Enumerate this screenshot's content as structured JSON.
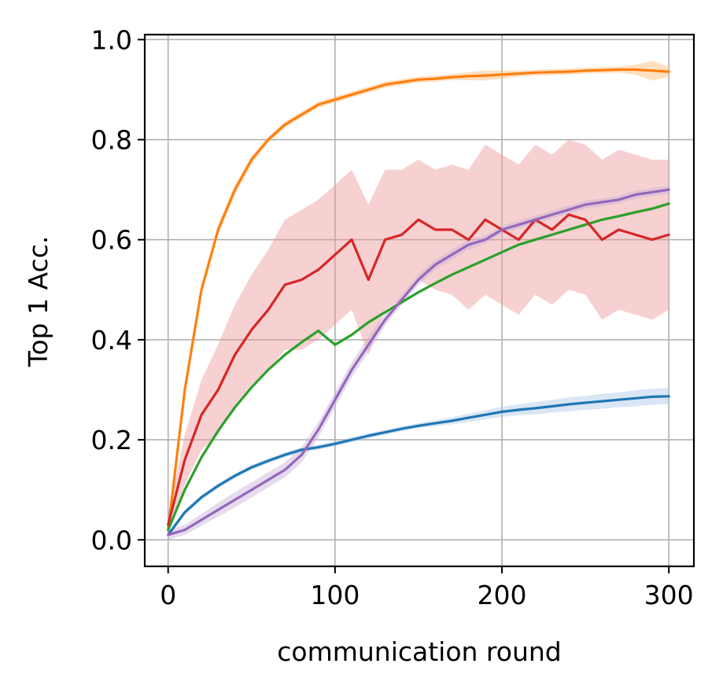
{
  "chart_data": {
    "type": "line",
    "title": "",
    "xlabel": "communication round",
    "ylabel": "Top 1 Acc.",
    "xlim": [
      -14,
      315
    ],
    "ylim": [
      -0.053,
      1.01
    ],
    "xticks": [
      0,
      100,
      200,
      300
    ],
    "yticks": [
      0.0,
      0.2,
      0.4,
      0.6,
      0.8,
      1.0
    ],
    "xtick_labels": [
      "0",
      "100",
      "200",
      "300"
    ],
    "ytick_labels": [
      "0.0",
      "0.2",
      "0.4",
      "0.6",
      "0.8",
      "1.0"
    ],
    "grid": true,
    "legend": "none",
    "x": [
      0,
      10,
      20,
      30,
      40,
      50,
      60,
      70,
      80,
      90,
      100,
      110,
      120,
      130,
      140,
      150,
      160,
      170,
      180,
      190,
      200,
      210,
      220,
      230,
      240,
      250,
      260,
      270,
      280,
      290,
      300
    ],
    "series": [
      {
        "color": "#1f77b4",
        "band_color": "#aec7e8",
        "values": [
          0.01,
          0.055,
          0.085,
          0.108,
          0.128,
          0.145,
          0.158,
          0.17,
          0.18,
          0.185,
          0.192,
          0.2,
          0.208,
          0.215,
          0.222,
          0.228,
          0.233,
          0.238,
          0.244,
          0.25,
          0.256,
          0.26,
          0.263,
          0.267,
          0.271,
          0.274,
          0.277,
          0.28,
          0.283,
          0.286,
          0.287
        ],
        "band": [
          0.005,
          0.005,
          0.005,
          0.005,
          0.005,
          0.005,
          0.005,
          0.005,
          0.005,
          0.005,
          0.005,
          0.005,
          0.005,
          0.005,
          0.005,
          0.005,
          0.006,
          0.007,
          0.008,
          0.009,
          0.01,
          0.011,
          0.012,
          0.013,
          0.014,
          0.014,
          0.015,
          0.015,
          0.016,
          0.016,
          0.016
        ]
      },
      {
        "color": "#ff7f0e",
        "band_color": "#ffbb78",
        "values": [
          0.02,
          0.3,
          0.5,
          0.62,
          0.7,
          0.76,
          0.8,
          0.83,
          0.85,
          0.87,
          0.88,
          0.89,
          0.9,
          0.91,
          0.915,
          0.92,
          0.922,
          0.925,
          0.927,
          0.928,
          0.93,
          0.932,
          0.934,
          0.935,
          0.936,
          0.938,
          0.939,
          0.94,
          0.94,
          0.938,
          0.936
        ],
        "band": [
          0.01,
          0.01,
          0.01,
          0.01,
          0.01,
          0.008,
          0.006,
          0.006,
          0.006,
          0.006,
          0.006,
          0.006,
          0.006,
          0.006,
          0.006,
          0.006,
          0.006,
          0.006,
          0.008,
          0.01,
          0.008,
          0.006,
          0.006,
          0.006,
          0.006,
          0.006,
          0.006,
          0.006,
          0.01,
          0.02,
          0.01
        ]
      },
      {
        "color": "#2ca02c",
        "band_color": "#98df8a",
        "values": [
          0.02,
          0.1,
          0.165,
          0.218,
          0.265,
          0.305,
          0.34,
          0.37,
          0.395,
          0.418,
          0.39,
          0.41,
          0.435,
          0.455,
          0.475,
          0.495,
          0.513,
          0.53,
          0.545,
          0.56,
          0.575,
          0.59,
          0.6,
          0.61,
          0.62,
          0.63,
          0.64,
          0.647,
          0.655,
          0.662,
          0.672
        ],
        "band": [
          0.003,
          0.003,
          0.003,
          0.003,
          0.003,
          0.003,
          0.003,
          0.003,
          0.003,
          0.003,
          0.003,
          0.003,
          0.003,
          0.003,
          0.003,
          0.003,
          0.003,
          0.003,
          0.003,
          0.003,
          0.003,
          0.003,
          0.003,
          0.003,
          0.003,
          0.003,
          0.003,
          0.003,
          0.003,
          0.003,
          0.003
        ]
      },
      {
        "color": "#d62728",
        "band_color": "#ee9a9a",
        "values": [
          0.03,
          0.16,
          0.25,
          0.3,
          0.37,
          0.42,
          0.46,
          0.51,
          0.52,
          0.54,
          0.57,
          0.6,
          0.52,
          0.6,
          0.61,
          0.64,
          0.62,
          0.62,
          0.6,
          0.64,
          0.62,
          0.6,
          0.64,
          0.62,
          0.65,
          0.64,
          0.6,
          0.62,
          0.61,
          0.6,
          0.61
        ],
        "band": [
          0.02,
          0.05,
          0.07,
          0.09,
          0.1,
          0.11,
          0.12,
          0.13,
          0.14,
          0.14,
          0.14,
          0.14,
          0.15,
          0.14,
          0.13,
          0.12,
          0.12,
          0.13,
          0.14,
          0.15,
          0.15,
          0.15,
          0.15,
          0.15,
          0.15,
          0.15,
          0.16,
          0.16,
          0.16,
          0.16,
          0.15
        ]
      },
      {
        "color": "#9467bd",
        "band_color": "#c5b0d5",
        "values": [
          0.01,
          0.02,
          0.04,
          0.06,
          0.08,
          0.1,
          0.12,
          0.14,
          0.17,
          0.22,
          0.28,
          0.34,
          0.39,
          0.44,
          0.48,
          0.52,
          0.55,
          0.57,
          0.59,
          0.6,
          0.62,
          0.63,
          0.64,
          0.65,
          0.66,
          0.67,
          0.675,
          0.68,
          0.69,
          0.695,
          0.7
        ],
        "band": [
          0.01,
          0.01,
          0.012,
          0.014,
          0.015,
          0.015,
          0.015,
          0.015,
          0.015,
          0.015,
          0.015,
          0.015,
          0.015,
          0.012,
          0.01,
          0.01,
          0.01,
          0.01,
          0.01,
          0.008,
          0.008,
          0.008,
          0.008,
          0.008,
          0.008,
          0.008,
          0.008,
          0.008,
          0.008,
          0.008,
          0.008
        ]
      }
    ]
  }
}
